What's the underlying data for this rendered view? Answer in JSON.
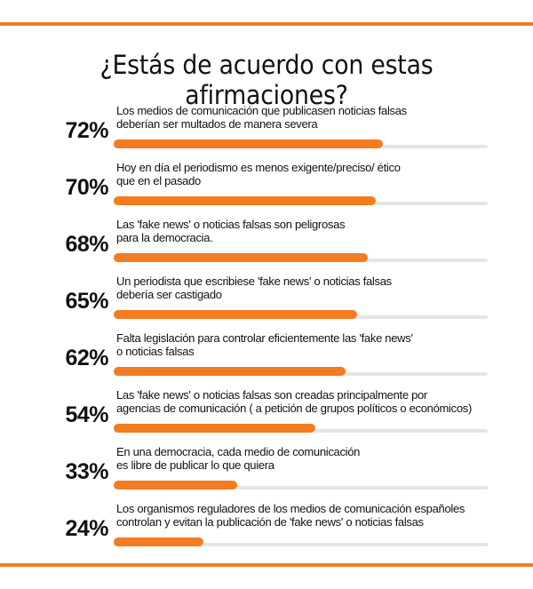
{
  "chart_data": {
    "type": "bar",
    "orientation": "horizontal",
    "title": "¿Estás de acuerdo con estas afirmaciones?",
    "xlim": [
      0,
      100
    ],
    "bar_color": "#f47b20",
    "track_color": "#e6e6e1",
    "accent_rule_color": "#f47b20",
    "items": [
      {
        "value": 72,
        "label": "72%",
        "lines": [
          "Los medios de comunicación que publicasen noticias falsas",
          "deberían ser multados de manera severa"
        ]
      },
      {
        "value": 70,
        "label": "70%",
        "lines": [
          "Hoy en día el periodismo es menos exigente/preciso/ ético",
          "que en el pasado"
        ]
      },
      {
        "value": 68,
        "label": "68%",
        "lines": [
          "Las 'fake news' o noticias falsas son peligrosas",
          "para la democracia."
        ]
      },
      {
        "value": 65,
        "label": "65%",
        "lines": [
          "Un periodista que escribiese 'fake news' o noticias falsas",
          "debería ser castigado"
        ]
      },
      {
        "value": 62,
        "label": "62%",
        "lines": [
          "Falta legislación para controlar eficientemente las 'fake news'",
          "o noticias falsas"
        ]
      },
      {
        "value": 54,
        "label": "54%",
        "lines": [
          "Las 'fake news' o noticias falsas son creadas principalmente por",
          "agencias de comunicación ( a petición de grupos políticos o económicos)"
        ]
      },
      {
        "value": 33,
        "label": "33%",
        "lines": [
          "En una democracia, cada medio de comunicación",
          "es libre de publicar lo que quiera"
        ]
      },
      {
        "value": 24,
        "label": "24%",
        "lines": [
          "Los organismos reguladores de los medios de comunicación españoles",
          "controlan y evitan la publicación de 'fake news' o noticias falsas"
        ]
      }
    ]
  }
}
